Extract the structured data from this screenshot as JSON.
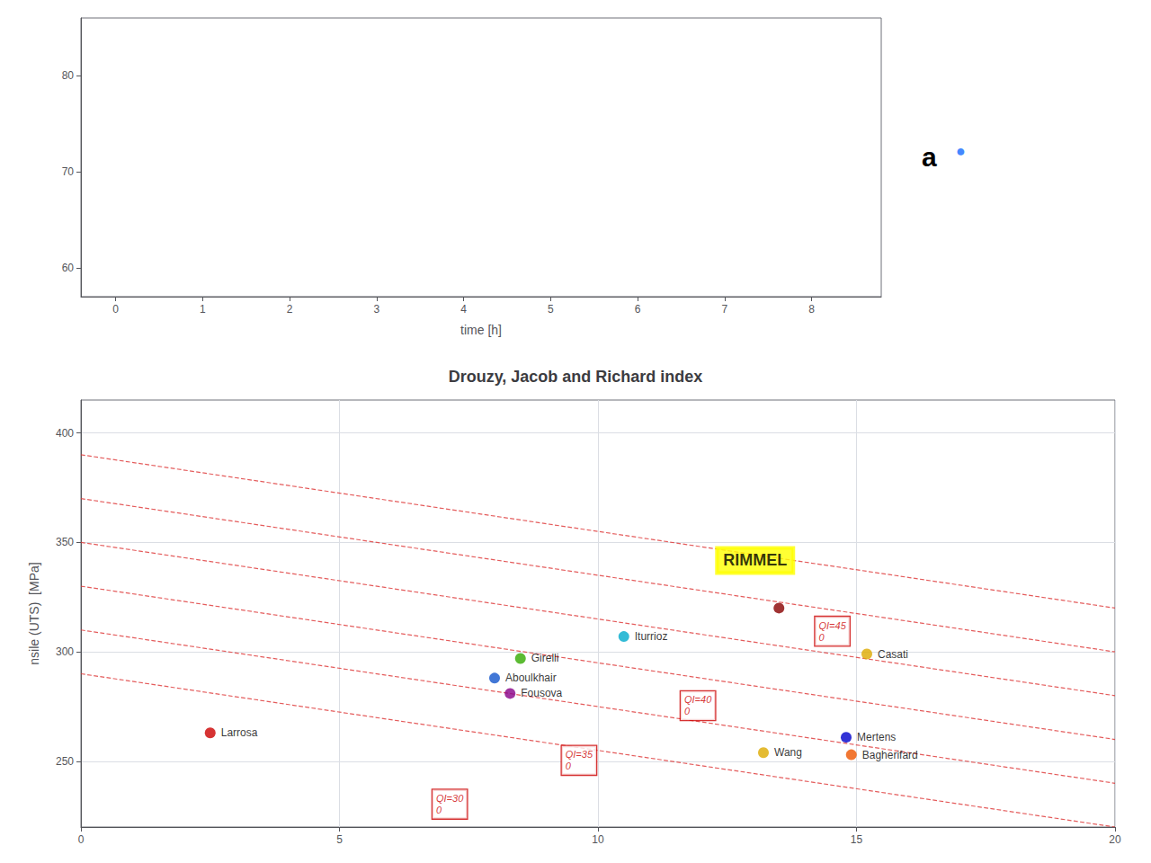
{
  "chart_data": [
    {
      "type": "scatter",
      "x": [],
      "values": [],
      "xlabel": "time [h]",
      "xlim": [
        -0.4,
        8.8
      ],
      "xticks": [
        0,
        1,
        2,
        3,
        4,
        5,
        6,
        7,
        8
      ],
      "ylim": [
        57,
        86
      ],
      "yticks": [
        60,
        70,
        80
      ],
      "grid": false,
      "annotations": [
        {
          "text": "a",
          "color": "#000000"
        },
        {
          "text": "●",
          "color": "#4488ff"
        }
      ]
    },
    {
      "type": "scatter",
      "title": "Drouzy, Jacob and Richard index",
      "ylabel": "nsile (UTS)  [MPa]",
      "xlim": [
        0,
        20
      ],
      "xticks": [
        0,
        5,
        10,
        15,
        20
      ],
      "ylim": [
        220,
        415
      ],
      "yticks": [
        250,
        300,
        350,
        400
      ],
      "grid": true,
      "x": [
        2.5,
        8.0,
        8.5,
        8.3,
        10.5,
        13.5,
        15.2,
        14.8,
        13.2,
        14.9
      ],
      "values": [
        263,
        288,
        297,
        281,
        307,
        320,
        299,
        261,
        254,
        253
      ],
      "colors": [
        "#cc0000",
        "#1155cc",
        "#33aa00",
        "#880088",
        "#00aacc",
        "#880000",
        "#ddaa00",
        "#0000cc",
        "#ddaa00",
        "#ee5500"
      ],
      "labels": [
        "Larrosa",
        "Aboulkhair",
        "Girelli",
        "Fousova",
        "Iturrioz",
        null,
        "Casati",
        "Mertens",
        "Wang",
        "Bagherifard"
      ],
      "series": [
        {
          "type": "line",
          "color": "#dd3333",
          "line_style": "dashed",
          "x": [
            0,
            20
          ],
          "values": [
            390,
            320
          ]
        },
        {
          "type": "line",
          "color": "#dd3333",
          "line_style": "dashed",
          "x": [
            0,
            20
          ],
          "values": [
            370,
            300
          ]
        },
        {
          "type": "line",
          "color": "#dd3333",
          "line_style": "dashed",
          "x": [
            0,
            20
          ],
          "values": [
            350,
            280
          ]
        },
        {
          "type": "line",
          "color": "#dd3333",
          "line_style": "dashed",
          "x": [
            0,
            20
          ],
          "values": [
            330,
            260
          ]
        },
        {
          "type": "line",
          "color": "#dd3333",
          "line_style": "dashed",
          "x": [
            0,
            20
          ],
          "values": [
            310,
            240
          ]
        },
        {
          "type": "line",
          "color": "#dd3333",
          "line_style": "dashed",
          "x": [
            0,
            20
          ],
          "values": [
            290,
            220
          ]
        }
      ],
      "annotations": [
        {
          "text": "QI=45\n0",
          "x": 14.2,
          "y": 316,
          "color": "#cc0000"
        },
        {
          "text": "QI=40\n0",
          "x": 11.6,
          "y": 282,
          "color": "#cc0000"
        },
        {
          "text": "QI=35\n0",
          "x": 9.3,
          "y": 257,
          "color": "#cc0000"
        },
        {
          "text": "QI=30\n0",
          "x": 6.8,
          "y": 237,
          "color": "#cc0000"
        }
      ],
      "highlight": {
        "text": "RIMMEL",
        "x": 12.3,
        "y": 336,
        "color": "yellow"
      }
    }
  ]
}
